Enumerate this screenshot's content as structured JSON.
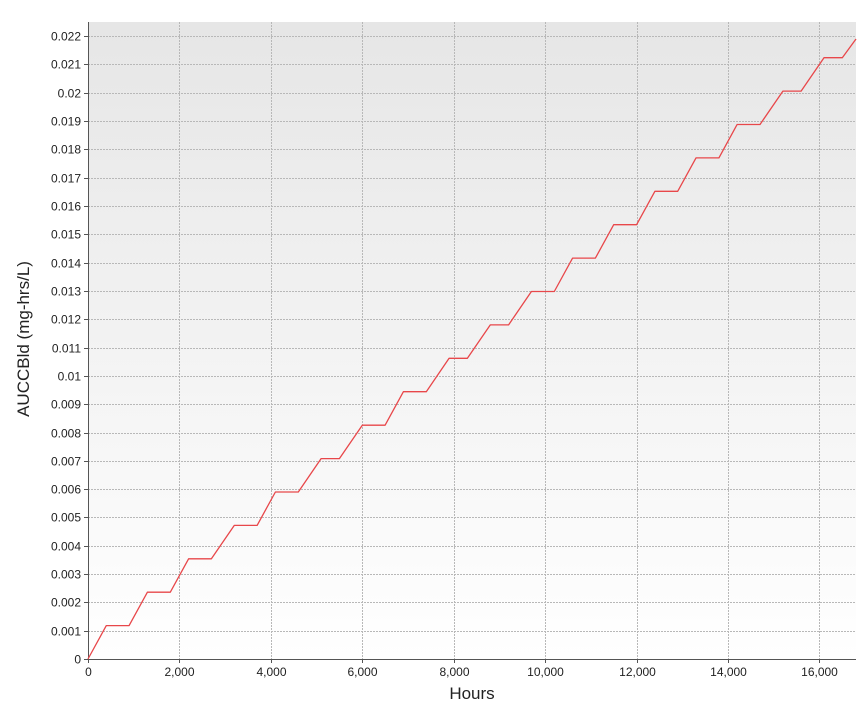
{
  "chart_data": {
    "type": "line",
    "title": "",
    "xlabel": "Hours",
    "ylabel": "AUCCBld (mg-hrs/L)",
    "xlim": [
      0,
      16800
    ],
    "ylim": [
      0,
      0.0225
    ],
    "grid": true,
    "legend": "none",
    "x_ticks": [
      0,
      2000,
      4000,
      6000,
      8000,
      10000,
      12000,
      14000,
      16000
    ],
    "x_tick_labels": [
      "0",
      "2,000",
      "4,000",
      "6,000",
      "8,000",
      "10,000",
      "12,000",
      "14,000",
      "16,000"
    ],
    "y_ticks": [
      0,
      0.001,
      0.002,
      0.003,
      0.004,
      0.005,
      0.006,
      0.007,
      0.008,
      0.009,
      0.01,
      0.011,
      0.012,
      0.013,
      0.014,
      0.015,
      0.016,
      0.017,
      0.018,
      0.019,
      0.02,
      0.021,
      0.022
    ],
    "y_tick_labels": [
      "0",
      "0.001",
      "0.002",
      "0.003",
      "0.004",
      "0.005",
      "0.006",
      "0.007",
      "0.008",
      "0.009",
      "0.01",
      "0.011",
      "0.012",
      "0.013",
      "0.014",
      "0.015",
      "0.016",
      "0.017",
      "0.018",
      "0.019",
      "0.02",
      "0.021",
      "0.022"
    ],
    "series": [
      {
        "color": "#e8474a",
        "x": [
          0,
          400,
          900,
          1300,
          1800,
          2200,
          2700,
          3200,
          3700,
          4100,
          4600,
          5100,
          5500,
          6000,
          6500,
          6900,
          7400,
          7900,
          8300,
          8800,
          9200,
          9700,
          10200,
          10600,
          11100,
          11500,
          12000,
          12400,
          12900,
          13300,
          13800,
          14200,
          14700,
          15200,
          15600,
          16100,
          16500,
          16800
        ],
        "y": [
          0,
          0.00118,
          0.00118,
          0.00236,
          0.00236,
          0.00354,
          0.00354,
          0.00472,
          0.00472,
          0.0059,
          0.0059,
          0.00708,
          0.00708,
          0.00826,
          0.00826,
          0.00944,
          0.00944,
          0.01062,
          0.01062,
          0.0118,
          0.0118,
          0.01298,
          0.01298,
          0.01416,
          0.01416,
          0.01534,
          0.01534,
          0.01652,
          0.01652,
          0.0177,
          0.0177,
          0.01888,
          0.01888,
          0.02006,
          0.02006,
          0.02124,
          0.02124,
          0.0219
        ]
      }
    ]
  },
  "colors": {
    "line": "#e8474a",
    "grid": "#b8b8b8",
    "axis": "#555555",
    "plot_bg_top": "#e6e6e6",
    "plot_bg_bottom": "#ffffff"
  }
}
